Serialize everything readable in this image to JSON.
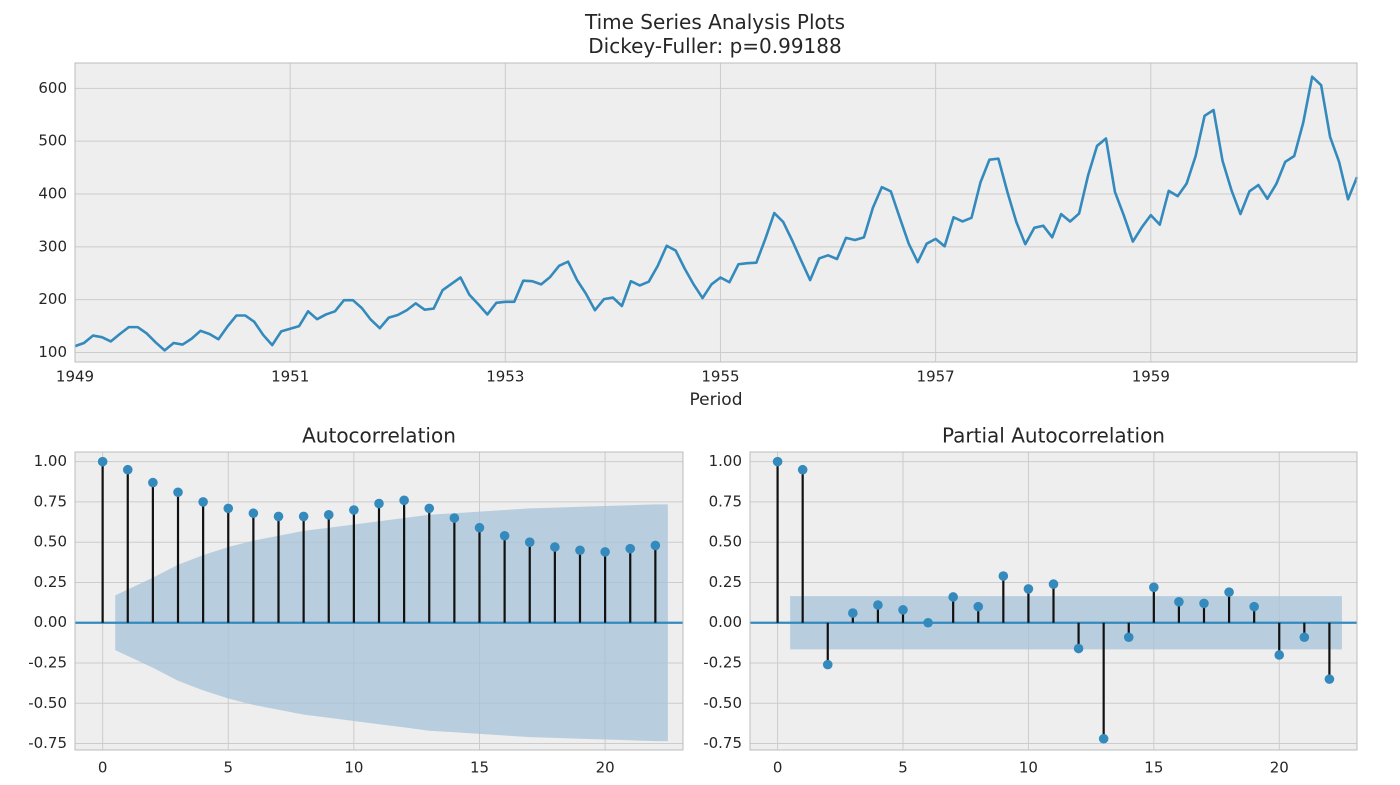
{
  "chart_data": [
    {
      "type": "line",
      "title": "Time Series Analysis Plots",
      "subtitle": "Dickey-Fuller: p=0.99188",
      "xlabel": "Period",
      "ylabel": "",
      "x_start": "1949-01",
      "x_freq": "monthly",
      "xticks": [
        1949,
        1951,
        1953,
        1955,
        1957,
        1959
      ],
      "yticks": [
        100,
        200,
        300,
        400,
        500,
        600
      ],
      "xlim": [
        1949,
        1960.9167
      ],
      "ylim": [
        82,
        648
      ],
      "grid": true,
      "color": "#348abd",
      "series": [
        {
          "values": [
            112,
            118,
            132,
            129,
            121,
            135,
            148,
            148,
            136,
            119,
            104,
            118,
            115,
            126,
            141,
            135,
            125,
            149,
            170,
            170,
            158,
            133,
            114,
            140,
            145,
            150,
            178,
            163,
            172,
            178,
            199,
            199,
            184,
            162,
            146,
            166,
            171,
            180,
            193,
            181,
            183,
            218,
            230,
            242,
            209,
            191,
            172,
            194,
            196,
            196,
            236,
            235,
            229,
            243,
            264,
            272,
            237,
            211,
            180,
            201,
            204,
            188,
            235,
            227,
            234,
            264,
            302,
            293,
            259,
            229,
            203,
            229,
            242,
            233,
            267,
            269,
            270,
            315,
            364,
            347,
            312,
            274,
            237,
            278,
            284,
            277,
            317,
            313,
            318,
            374,
            413,
            405,
            355,
            306,
            271,
            306,
            315,
            301,
            356,
            348,
            355,
            422,
            465,
            467,
            404,
            347,
            305,
            336,
            340,
            318,
            362,
            348,
            363,
            435,
            491,
            505,
            404,
            359,
            310,
            337,
            360,
            342,
            406,
            396,
            420,
            472,
            548,
            559,
            463,
            407,
            362,
            405,
            417,
            391,
            419,
            461,
            472,
            535,
            622,
            606,
            508,
            461,
            390,
            432
          ]
        }
      ]
    },
    {
      "type": "stem",
      "title": "Autocorrelation",
      "xticks": [
        0,
        5,
        10,
        15,
        20
      ],
      "yticks": [
        "1.00",
        "0.75",
        "0.50",
        "0.25",
        "0.00",
        "-0.25",
        "-0.50",
        "-0.75"
      ],
      "ytick_values": [
        1.0,
        0.75,
        0.5,
        0.25,
        0.0,
        -0.25,
        -0.5,
        -0.75
      ],
      "xlim": [
        -1.1,
        23.1
      ],
      "ylim": [
        -0.79,
        1.06
      ],
      "grid": true,
      "lags": [
        0,
        1,
        2,
        3,
        4,
        5,
        6,
        7,
        8,
        9,
        10,
        11,
        12,
        13,
        14,
        15,
        16,
        17,
        18,
        19,
        20,
        21,
        22
      ],
      "values": [
        1.0,
        0.95,
        0.87,
        0.81,
        0.75,
        0.71,
        0.68,
        0.66,
        0.66,
        0.67,
        0.7,
        0.74,
        0.76,
        0.71,
        0.65,
        0.59,
        0.54,
        0.5,
        0.47,
        0.45,
        0.44,
        0.46,
        0.48
      ],
      "conf_band": [
        0,
        0.17,
        0.28,
        0.36,
        0.42,
        0.47,
        0.51,
        0.54,
        0.57,
        0.59,
        0.61,
        0.63,
        0.65,
        0.67,
        0.68,
        0.69,
        0.7,
        0.71,
        0.715,
        0.72,
        0.725,
        0.73,
        0.735
      ],
      "band_color": "#a6c3d9",
      "marker_color": "#348abd"
    },
    {
      "type": "stem",
      "title": "Partial Autocorrelation",
      "xticks": [
        0,
        5,
        10,
        15,
        20
      ],
      "yticks": [
        "1.00",
        "0.75",
        "0.50",
        "0.25",
        "0.00",
        "-0.25",
        "-0.50",
        "-0.75"
      ],
      "ytick_values": [
        1.0,
        0.75,
        0.5,
        0.25,
        0.0,
        -0.25,
        -0.5,
        -0.75
      ],
      "xlim": [
        -1.1,
        23.1
      ],
      "ylim": [
        -0.79,
        1.06
      ],
      "grid": true,
      "lags": [
        0,
        1,
        2,
        3,
        4,
        5,
        6,
        7,
        8,
        9,
        10,
        11,
        12,
        13,
        14,
        15,
        16,
        17,
        18,
        19,
        20,
        21,
        22
      ],
      "values": [
        1.0,
        0.95,
        -0.26,
        0.06,
        0.11,
        0.08,
        0.0,
        0.16,
        0.1,
        0.29,
        0.21,
        0.24,
        -0.16,
        -0.72,
        -0.09,
        0.22,
        0.13,
        0.12,
        0.19,
        0.1,
        -0.2,
        -0.09,
        -0.35
      ],
      "conf_band_width": 0.165,
      "band_color": "#a6c3d9",
      "marker_color": "#348abd"
    }
  ]
}
